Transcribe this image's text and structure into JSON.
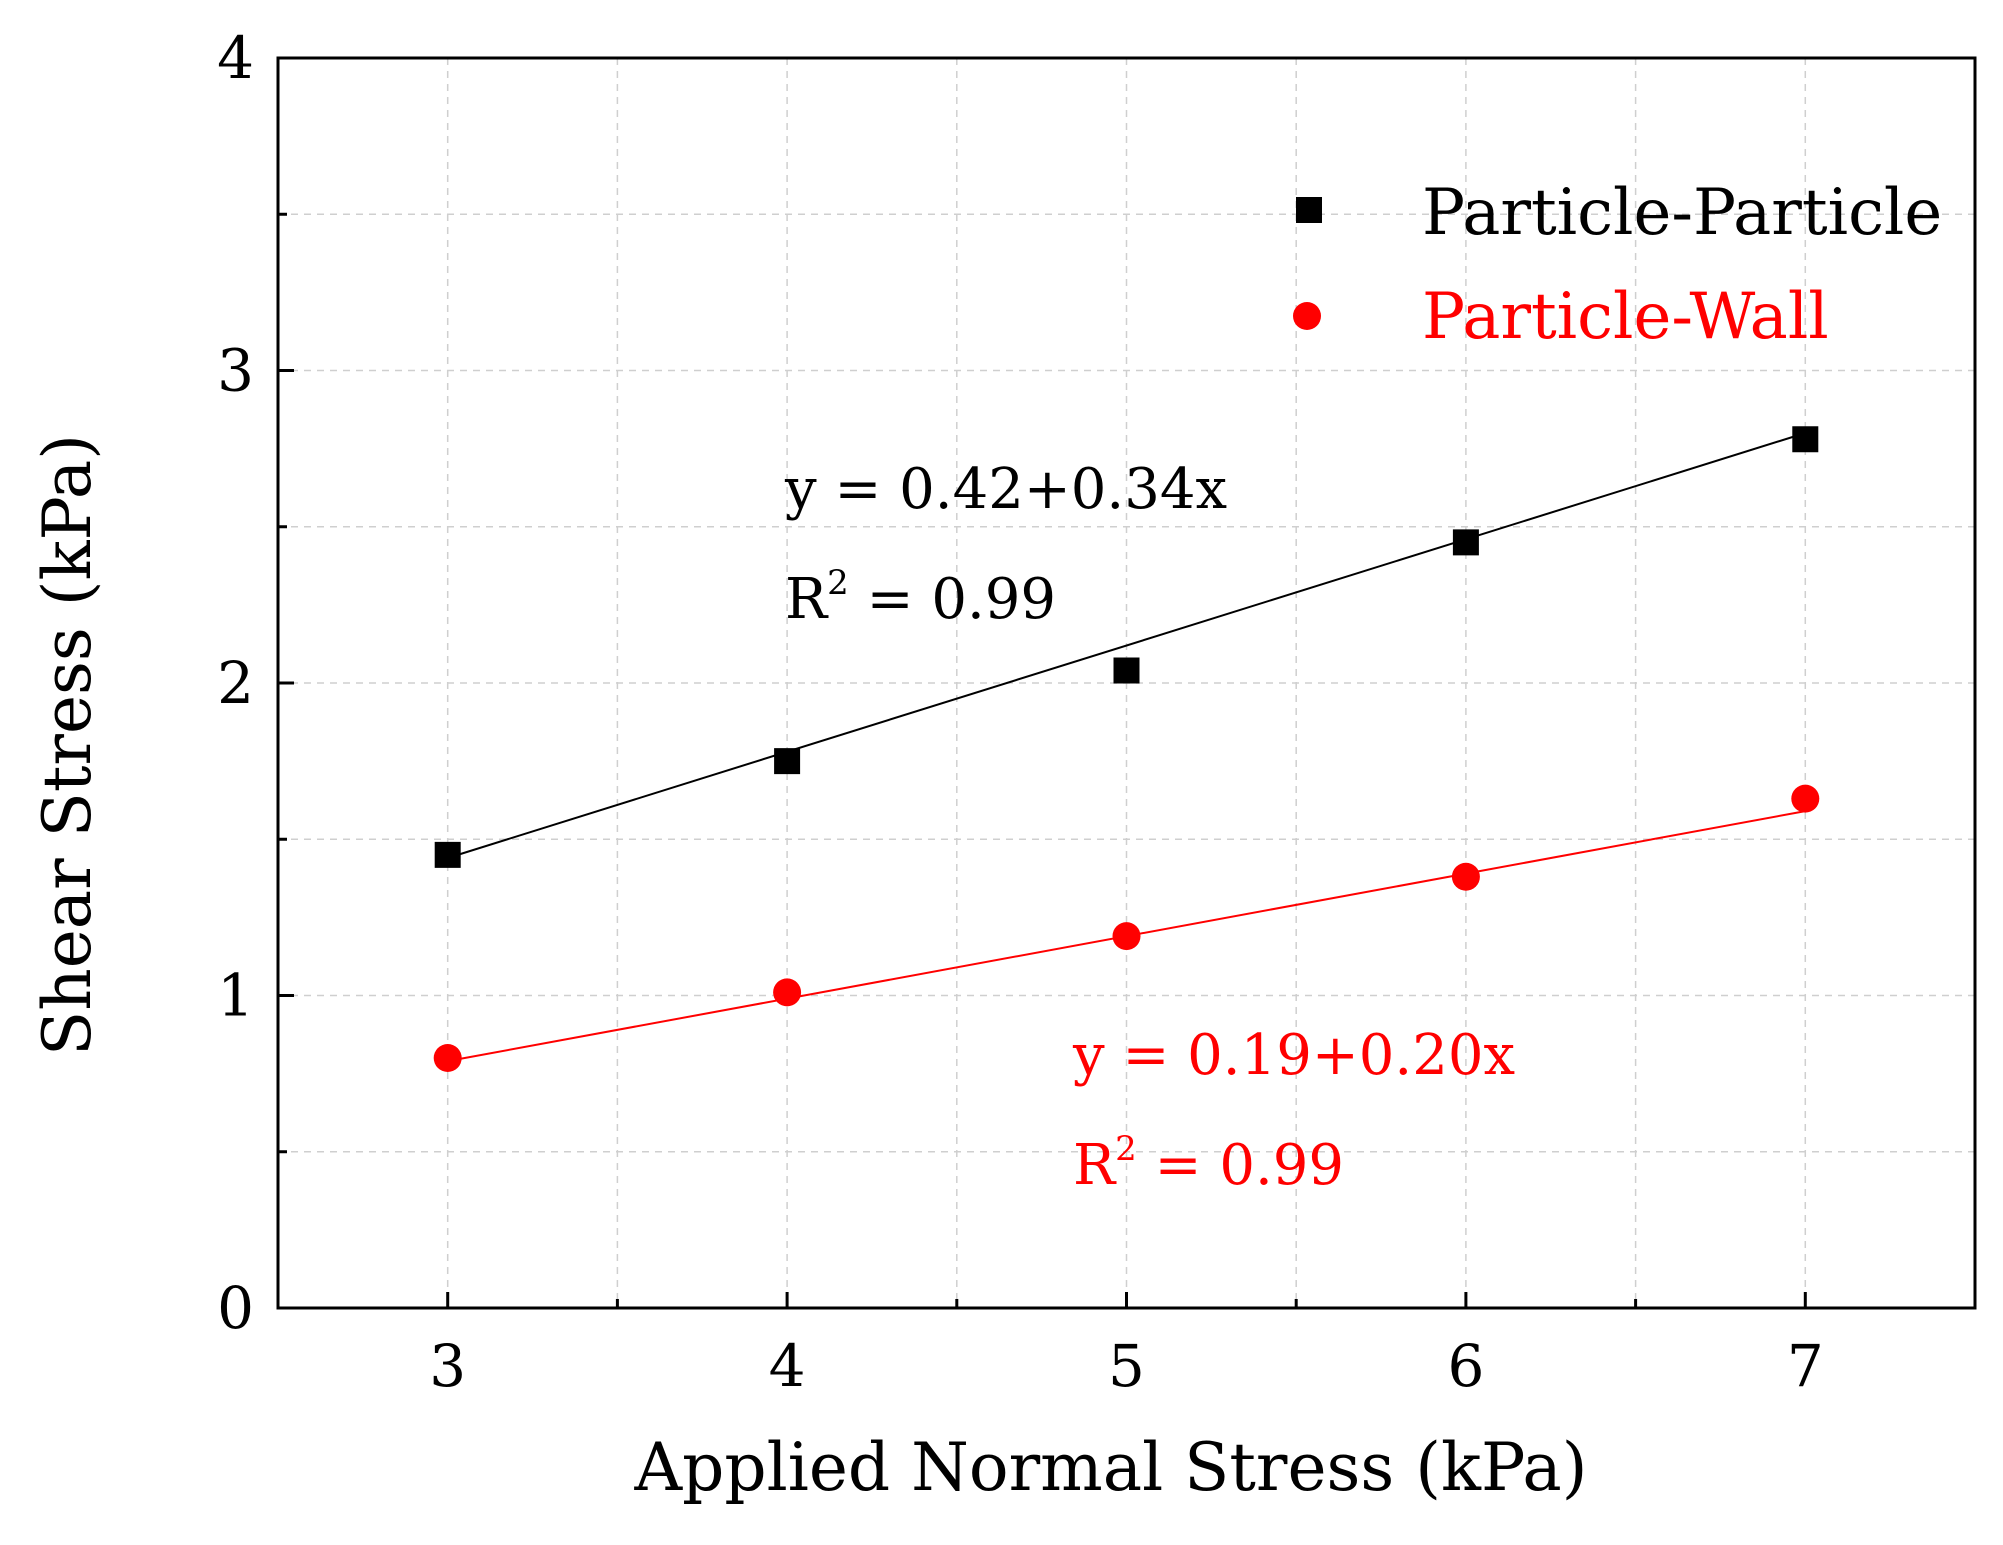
{
  "chart_data": {
    "type": "scatter",
    "xlabel": "Applied Normal Stress (kPa)",
    "ylabel": "Shear Stress (kPa)",
    "xlim": [
      2.5,
      7.5
    ],
    "ylim": [
      0,
      4
    ],
    "x_ticks": [
      "3",
      "4",
      "5",
      "6",
      "7"
    ],
    "y_ticks": [
      "0",
      "1",
      "2",
      "3",
      "4"
    ],
    "x_grid": [
      3,
      3.5,
      4,
      4.5,
      5,
      5.5,
      6,
      6.5,
      7
    ],
    "y_grid": [
      0.5,
      1,
      1.5,
      2,
      2.5,
      3,
      3.5
    ],
    "grid": true,
    "legend_position": "top-right",
    "series": [
      {
        "name": "Particle-Particle",
        "color": "#000000",
        "marker": "square",
        "x": [
          3,
          4,
          5,
          6,
          7
        ],
        "y": [
          1.45,
          1.75,
          2.04,
          2.45,
          2.78
        ],
        "fit": {
          "intercept": 0.42,
          "slope": 0.34,
          "label": "y = 0.42+0.34x",
          "r2_prefix": "R",
          "r2_exp": "2",
          "r2_value": " = 0.99"
        }
      },
      {
        "name": "Particle-Wall",
        "color": "#ff0000",
        "marker": "circle",
        "x": [
          3,
          4,
          5,
          6,
          7
        ],
        "y": [
          0.8,
          1.01,
          1.19,
          1.38,
          1.63
        ],
        "fit": {
          "intercept": 0.19,
          "slope": 0.2,
          "label": "y = 0.19+0.20x",
          "r2_prefix": "R",
          "r2_exp": "2",
          "r2_value": " = 0.99"
        }
      }
    ]
  }
}
